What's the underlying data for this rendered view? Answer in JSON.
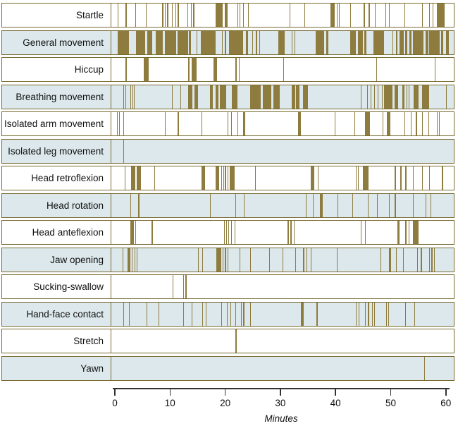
{
  "figure": {
    "axis_label": "Minutes"
  },
  "colors": {
    "event_mark": "#8e7c3e",
    "row_border": "#786a30",
    "band_blue": "#dce8ec",
    "band_white": "#ffffff",
    "axis": "#333333",
    "text": "#111111"
  },
  "chart_data": {
    "type": "timeline",
    "title": "",
    "xlabel": "Minutes",
    "ylabel": "",
    "x_range_minutes": [
      0,
      60
    ],
    "x_ticks": [
      0,
      10,
      20,
      30,
      40,
      50,
      60
    ],
    "grid": false,
    "legend": false,
    "description": "Event raster: each row shows occurrences of one fetal movement type over 60 minutes; events_min entries are [start_minute, duration_minutes].",
    "rows": [
      {
        "label": "Startle",
        "band": "white",
        "events_min": [
          [
            0.7,
            0.15
          ],
          [
            2.2,
            0.15
          ],
          [
            3.9,
            0.15
          ],
          [
            5.8,
            0.15
          ],
          [
            8.8,
            0.15
          ],
          [
            9.2,
            0.15
          ],
          [
            9.7,
            0.15
          ],
          [
            10.5,
            0.15
          ],
          [
            11.2,
            0.15
          ],
          [
            11.6,
            0.15
          ],
          [
            13.3,
            0.15
          ],
          [
            13.9,
            0.15
          ],
          [
            14.4,
            0.15
          ],
          [
            18.4,
            1.3
          ],
          [
            20.1,
            0.5
          ],
          [
            22.3,
            0.15
          ],
          [
            22.7,
            0.15
          ],
          [
            23.3,
            0.15
          ],
          [
            24.2,
            0.15
          ],
          [
            31.7,
            0.15
          ],
          [
            34.4,
            0.15
          ],
          [
            39.1,
            0.7
          ],
          [
            40.2,
            0.15
          ],
          [
            40.6,
            0.15
          ],
          [
            42.6,
            0.15
          ],
          [
            45.1,
            0.15
          ],
          [
            46.0,
            0.15
          ],
          [
            47.1,
            0.15
          ],
          [
            49.0,
            0.15
          ],
          [
            49.6,
            0.15
          ],
          [
            52.4,
            0.15
          ],
          [
            55.6,
            0.15
          ],
          [
            56.9,
            0.15
          ],
          [
            57.5,
            0.15
          ],
          [
            58.2,
            1.4
          ]
        ]
      },
      {
        "label": "General movement",
        "band": "blue",
        "events_min": [
          [
            0.7,
            2.1
          ],
          [
            4.0,
            1.7
          ],
          [
            6.1,
            0.9
          ],
          [
            7.6,
            1.3
          ],
          [
            9.2,
            2.1
          ],
          [
            11.6,
            1.8
          ],
          [
            13.6,
            0.4
          ],
          [
            15.0,
            0.15
          ],
          [
            15.7,
            2.7
          ],
          [
            19.5,
            0.15
          ],
          [
            20.1,
            0.15
          ],
          [
            20.8,
            2.6
          ],
          [
            23.8,
            0.4
          ],
          [
            25.0,
            0.15
          ],
          [
            25.7,
            0.15
          ],
          [
            26.3,
            0.15
          ],
          [
            29.7,
            1.1
          ],
          [
            32.1,
            0.15
          ],
          [
            32.6,
            0.15
          ],
          [
            36.4,
            1.5
          ],
          [
            38.3,
            0.45
          ],
          [
            42.6,
            1.1
          ],
          [
            44.1,
            0.85
          ],
          [
            45.2,
            0.35
          ],
          [
            46.8,
            1.9
          ],
          [
            50.3,
            0.15
          ],
          [
            50.9,
            0.3
          ],
          [
            51.5,
            0.85
          ],
          [
            52.6,
            0.3
          ],
          [
            53.3,
            0.35
          ],
          [
            53.9,
            1.9
          ],
          [
            56.2,
            0.5
          ],
          [
            56.9,
            1.9
          ],
          [
            59.0,
            0.45
          ],
          [
            59.9,
            0.5
          ]
        ]
      },
      {
        "label": "Hiccup",
        "band": "white",
        "events_min": [
          [
            2.2,
            0.15
          ],
          [
            5.4,
            1.0
          ],
          [
            13.5,
            0.15
          ],
          [
            14.1,
            0.9
          ],
          [
            18.0,
            0.6
          ],
          [
            22.0,
            0.15
          ],
          [
            22.6,
            0.15
          ],
          [
            30.6,
            0.15
          ],
          [
            47.3,
            0.15
          ],
          [
            57.9,
            0.15
          ]
        ]
      },
      {
        "label": "Breathing movement",
        "band": "blue",
        "events_min": [
          [
            1.8,
            0.15
          ],
          [
            2.1,
            0.15
          ],
          [
            3.0,
            0.15
          ],
          [
            3.4,
            0.15
          ],
          [
            3.7,
            0.15
          ],
          [
            10.5,
            0.15
          ],
          [
            12.0,
            0.15
          ],
          [
            13.5,
            0.7
          ],
          [
            14.6,
            0.6
          ],
          [
            17.4,
            0.45
          ],
          [
            18.4,
            0.5
          ],
          [
            19.1,
            1.2
          ],
          [
            21.3,
            1.1
          ],
          [
            24.6,
            1.9
          ],
          [
            26.9,
            1.5
          ],
          [
            28.8,
            1.1
          ],
          [
            32.1,
            0.6
          ],
          [
            32.9,
            0.6
          ],
          [
            34.2,
            0.8
          ],
          [
            44.5,
            0.15
          ],
          [
            45.7,
            0.15
          ],
          [
            46.3,
            0.15
          ],
          [
            47.0,
            0.15
          ],
          [
            47.6,
            0.15
          ],
          [
            48.3,
            0.15
          ],
          [
            48.7,
            1.5
          ],
          [
            50.7,
            0.6
          ],
          [
            52.0,
            0.45
          ],
          [
            52.8,
            0.15
          ],
          [
            53.2,
            0.15
          ],
          [
            54.1,
            0.8
          ],
          [
            55.6,
            1.3
          ],
          [
            59.9,
            0.15
          ]
        ]
      },
      {
        "label": "Isolated arm movement",
        "band": "white",
        "events_min": [
          [
            0.6,
            0.15
          ],
          [
            1.0,
            0.15
          ],
          [
            1.8,
            0.15
          ],
          [
            9.2,
            0.15
          ],
          [
            11.6,
            0.15
          ],
          [
            15.8,
            0.15
          ],
          [
            20.6,
            0.15
          ],
          [
            21.2,
            0.15
          ],
          [
            22.3,
            0.15
          ],
          [
            23.3,
            0.45
          ],
          [
            33.2,
            0.5
          ],
          [
            39.8,
            0.15
          ],
          [
            43.4,
            0.15
          ],
          [
            45.3,
            0.9
          ],
          [
            48.5,
            0.15
          ],
          [
            49.3,
            0.6
          ],
          [
            52.4,
            0.15
          ],
          [
            53.5,
            0.15
          ],
          [
            54.5,
            0.15
          ],
          [
            55.6,
            0.15
          ],
          [
            56.7,
            0.15
          ],
          [
            58.2,
            0.15
          ],
          [
            58.6,
            0.15
          ]
        ]
      },
      {
        "label": "Isolated leg movement",
        "band": "blue",
        "events_min": [
          [
            1.8,
            0.15
          ]
        ]
      },
      {
        "label": "Head retroflexion",
        "band": "white",
        "events_min": [
          [
            2.0,
            0.15
          ],
          [
            3.2,
            0.7
          ],
          [
            4.2,
            0.8
          ],
          [
            7.3,
            0.15
          ],
          [
            15.8,
            0.7
          ],
          [
            18.4,
            0.65
          ],
          [
            19.4,
            0.15
          ],
          [
            19.8,
            0.15
          ],
          [
            20.1,
            0.15
          ],
          [
            20.5,
            0.15
          ],
          [
            21.0,
            0.85
          ],
          [
            25.5,
            0.15
          ],
          [
            35.5,
            0.7
          ],
          [
            36.8,
            0.15
          ],
          [
            43.6,
            0.15
          ],
          [
            44.0,
            0.15
          ],
          [
            44.9,
            1.1
          ],
          [
            50.7,
            0.15
          ],
          [
            51.7,
            0.15
          ],
          [
            52.6,
            0.15
          ],
          [
            53.9,
            0.15
          ],
          [
            55.6,
            0.15
          ],
          [
            56.9,
            0.15
          ],
          [
            59.2,
            0.15
          ]
        ]
      },
      {
        "label": "Head rotation",
        "band": "blue",
        "events_min": [
          [
            3.0,
            0.15
          ],
          [
            4.5,
            0.15
          ],
          [
            17.4,
            0.15
          ],
          [
            21.9,
            0.15
          ],
          [
            23.5,
            0.15
          ],
          [
            34.6,
            0.15
          ],
          [
            35.9,
            0.15
          ],
          [
            37.2,
            0.5
          ],
          [
            40.3,
            0.15
          ],
          [
            43.0,
            0.15
          ],
          [
            45.8,
            0.15
          ],
          [
            47.5,
            0.15
          ],
          [
            49.6,
            0.15
          ],
          [
            50.7,
            0.25
          ],
          [
            53.9,
            0.15
          ],
          [
            56.2,
            0.15
          ],
          [
            57.1,
            0.15
          ]
        ]
      },
      {
        "label": "Head anteflexion",
        "band": "white",
        "events_min": [
          [
            3.0,
            0.7
          ],
          [
            3.9,
            0.15
          ],
          [
            6.9,
            0.15
          ],
          [
            19.9,
            0.15
          ],
          [
            20.3,
            0.15
          ],
          [
            20.7,
            0.15
          ],
          [
            21.2,
            0.15
          ],
          [
            21.8,
            0.15
          ],
          [
            31.4,
            0.15
          ],
          [
            31.9,
            0.15
          ],
          [
            32.5,
            0.15
          ],
          [
            44.5,
            0.15
          ],
          [
            45.3,
            0.15
          ],
          [
            51.1,
            0.45
          ],
          [
            52.6,
            0.15
          ],
          [
            53.2,
            0.15
          ],
          [
            53.9,
            1.1
          ]
        ]
      },
      {
        "label": "Jaw opening",
        "band": "blue",
        "events_min": [
          [
            1.6,
            0.15
          ],
          [
            2.5,
            0.6
          ],
          [
            3.3,
            0.15
          ],
          [
            3.8,
            0.15
          ],
          [
            4.2,
            0.15
          ],
          [
            15.2,
            0.15
          ],
          [
            16.0,
            0.15
          ],
          [
            18.5,
            0.9
          ],
          [
            19.7,
            0.15
          ],
          [
            20.1,
            0.15
          ],
          [
            20.5,
            0.15
          ],
          [
            22.7,
            0.15
          ],
          [
            24.6,
            0.15
          ],
          [
            28.0,
            0.15
          ],
          [
            30.4,
            0.15
          ],
          [
            32.7,
            0.15
          ],
          [
            34.2,
            0.15
          ],
          [
            34.8,
            0.15
          ],
          [
            35.5,
            0.15
          ],
          [
            40.2,
            0.15
          ],
          [
            48.1,
            0.15
          ],
          [
            49.6,
            0.45
          ],
          [
            50.9,
            0.15
          ],
          [
            52.2,
            0.15
          ],
          [
            54.7,
            0.15
          ],
          [
            55.4,
            0.15
          ],
          [
            56.9,
            0.15
          ],
          [
            57.3,
            0.15
          ],
          [
            57.7,
            0.15
          ]
        ]
      },
      {
        "label": "Sucking-swallow",
        "band": "white",
        "events_min": [
          [
            10.7,
            0.15
          ],
          [
            12.6,
            0.15
          ],
          [
            13.0,
            0.15
          ]
        ]
      },
      {
        "label": "Hand-face contact",
        "band": "blue",
        "events_min": [
          [
            1.8,
            0.15
          ],
          [
            2.8,
            0.15
          ],
          [
            6.0,
            0.15
          ],
          [
            8.1,
            0.15
          ],
          [
            12.6,
            0.15
          ],
          [
            14.1,
            0.15
          ],
          [
            16.0,
            0.15
          ],
          [
            16.6,
            0.15
          ],
          [
            19.4,
            0.15
          ],
          [
            20.4,
            0.15
          ],
          [
            21.1,
            0.15
          ],
          [
            21.9,
            0.15
          ],
          [
            23.0,
            0.15
          ],
          [
            23.4,
            0.15
          ],
          [
            24.6,
            0.15
          ],
          [
            33.8,
            0.45
          ],
          [
            36.6,
            0.15
          ],
          [
            43.6,
            0.15
          ],
          [
            44.2,
            0.15
          ],
          [
            45.3,
            0.15
          ],
          [
            45.8,
            0.3
          ],
          [
            46.6,
            0.15
          ],
          [
            47.0,
            0.15
          ],
          [
            49.1,
            0.15
          ],
          [
            49.5,
            0.15
          ],
          [
            52.5,
            0.15
          ],
          [
            54.2,
            0.15
          ]
        ]
      },
      {
        "label": "Stretch",
        "band": "white",
        "events_min": [
          [
            22.0,
            0.15
          ]
        ]
      },
      {
        "label": "Yawn",
        "band": "blue",
        "events_min": [
          [
            56.0,
            0.15
          ]
        ]
      }
    ]
  }
}
